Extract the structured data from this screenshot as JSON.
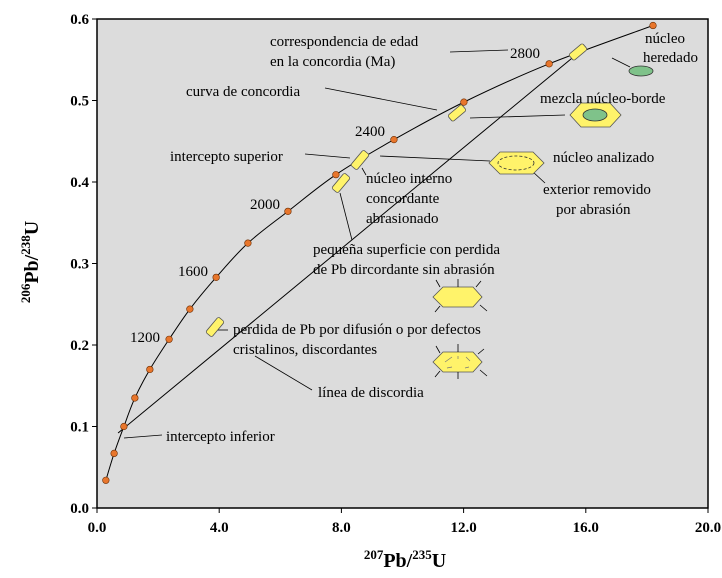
{
  "chart_data": {
    "type": "line",
    "xlabel": [
      "207",
      "Pb/",
      "235",
      "U"
    ],
    "ylabel": [
      "206",
      "Pb/",
      "238",
      "U"
    ],
    "xlim": [
      0,
      20
    ],
    "ylim": [
      0,
      0.6
    ],
    "xticks": [
      {
        "value": 0,
        "label": "0.0"
      },
      {
        "value": 4,
        "label": "4.0"
      },
      {
        "value": 8,
        "label": "8.0"
      },
      {
        "value": 12,
        "label": "12.0"
      },
      {
        "value": 16,
        "label": "16.0"
      },
      {
        "value": 20,
        "label": "20.0"
      }
    ],
    "yticks": [
      {
        "value": 0,
        "label": "0.0"
      },
      0.1,
      0.2,
      0.3,
      0.4,
      0.5,
      0.6
    ],
    "background": "#dcdcdc",
    "series": [
      {
        "x": [
          0.29,
          0.56,
          0.88,
          1.24,
          1.73,
          2.36,
          3.04,
          3.9,
          4.94,
          6.25,
          7.82,
          9.72,
          12.01,
          14.8,
          18.2
        ],
        "values": [
          0.034,
          0.067,
          0.1,
          0.135,
          0.17,
          0.207,
          0.244,
          0.283,
          0.325,
          0.364,
          0.409,
          0.452,
          0.498,
          0.545,
          0.592
        ],
        "color": "#000000",
        "marker_color": "#e8762c"
      },
      {
        "x": [
          0.69,
          16.0
        ],
        "values": [
          0.092,
          0.566
        ],
        "color": "#000000"
      }
    ],
    "age_labels": [
      "1200",
      "1600",
      "2000",
      "2400",
      "2800"
    ],
    "annotations": [
      "correspondencia de edad",
      "en la concordia (Ma)",
      "núcleo",
      "heredado",
      "curva de concordia",
      "mezcla núcleo-borde",
      "intercepto superior",
      "núcleo analizado",
      "núcleo interno",
      "concordante",
      "abrasionado",
      "exterior removido",
      "por abrasión",
      "pequeña superficie con perdida",
      "de Pb dircordante sin abrasión",
      "perdida de Pb por difusión o por defectos",
      "cristalinos, discordantes",
      "línea de discordia",
      "intercepto inferior"
    ]
  }
}
